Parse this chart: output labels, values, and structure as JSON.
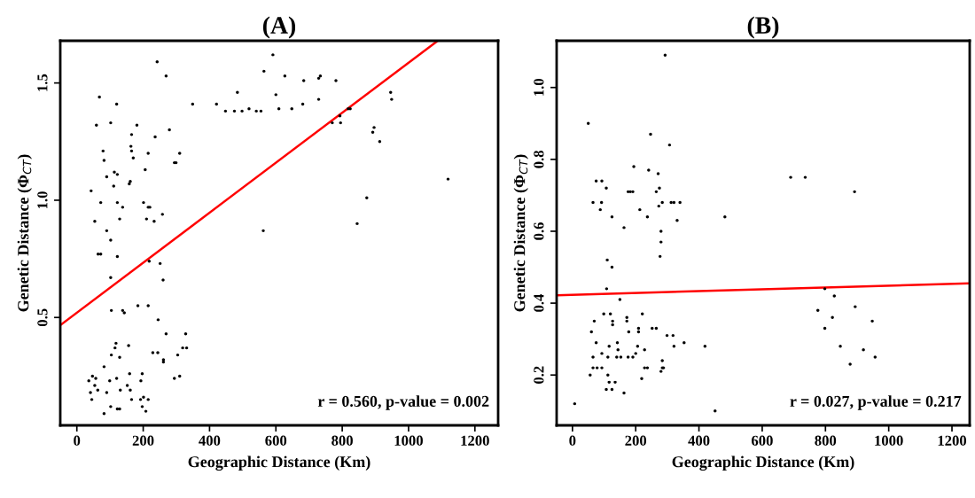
{
  "chart_data": [
    {
      "type": "scatter",
      "title": "(A)",
      "xlabel": "Geographic Distance (Km)",
      "ylabel": "Genetic Distance (Φ$_{CT}$)",
      "xlim": [
        -50,
        1270
      ],
      "xticks": [
        0,
        200,
        400,
        600,
        800,
        1000,
        1200
      ],
      "ylim": [
        0.04,
        1.68
      ],
      "yticks": [
        0.5,
        {
          "value": 1.0,
          "label": "1.0"
        },
        1.5
      ],
      "grid": false,
      "annotations": [
        "r = 0.560, p-value = 0.002"
      ],
      "series": [
        {
          "marker": "circle",
          "color": "#000000",
          "x": [
            242,
            269,
            591,
            564,
            627,
            684,
            729,
            734,
            781,
            484,
            600,
            946,
            949,
            421,
            681,
            729,
            448,
            475,
            498,
            519,
            541,
            609,
            648,
            555,
            818,
            793,
            770,
            795,
            824,
            892,
            896,
            913,
            874,
            845,
            562,
            1119,
            349,
            68,
            120,
            59,
            102,
            181,
            165,
            236,
            163,
            165,
            79,
            82,
            170,
            215,
            310,
            299,
            294,
            279,
            90,
            113,
            122,
            111,
            161,
            158,
            206,
            43,
            122,
            138,
            72,
            201,
            215,
            220,
            210,
            233,
            258,
            129,
            54,
            90,
            102,
            64,
            72,
            122,
            218,
            251,
            260,
            102,
            104,
            138,
            143,
            184,
            215,
            245,
            269,
            118,
            115,
            156,
            104,
            129,
            229,
            244,
            261,
            261,
            304,
            328,
            331,
            319,
            47,
            57,
            36,
            99,
            120,
            159,
            197,
            82,
            54,
            63,
            41,
            45,
            90,
            131,
            152,
            161,
            193,
            201,
            192,
            82,
            102,
            122,
            129,
            197,
            208,
            165,
            215,
            294,
            310
          ],
          "values": [
            1.59,
            1.53,
            1.62,
            1.55,
            1.53,
            1.51,
            1.52,
            1.53,
            1.51,
            1.46,
            1.45,
            1.46,
            1.43,
            1.41,
            1.41,
            1.43,
            1.38,
            1.38,
            1.38,
            1.39,
            1.38,
            1.39,
            1.39,
            1.38,
            1.39,
            1.36,
            1.33,
            1.33,
            1.39,
            1.29,
            1.31,
            1.25,
            1.01,
            0.9,
            0.87,
            1.09,
            1.41,
            1.44,
            1.41,
            1.32,
            1.33,
            1.32,
            1.28,
            1.27,
            1.23,
            1.21,
            1.21,
            1.17,
            1.18,
            1.2,
            1.2,
            1.16,
            1.16,
            1.3,
            1.1,
            1.12,
            1.11,
            1.06,
            1.08,
            1.07,
            1.13,
            1.04,
            0.99,
            0.97,
            0.99,
            0.99,
            0.97,
            0.97,
            0.92,
            0.91,
            0.94,
            0.92,
            0.91,
            0.87,
            0.83,
            0.77,
            0.77,
            0.76,
            0.74,
            0.73,
            0.66,
            0.67,
            0.53,
            0.53,
            0.52,
            0.55,
            0.55,
            0.49,
            0.43,
            0.39,
            0.37,
            0.38,
            0.34,
            0.33,
            0.35,
            0.35,
            0.32,
            0.31,
            0.34,
            0.43,
            0.37,
            0.37,
            0.25,
            0.24,
            0.23,
            0.23,
            0.24,
            0.26,
            0.26,
            0.29,
            0.21,
            0.19,
            0.18,
            0.15,
            0.18,
            0.19,
            0.21,
            0.19,
            0.23,
            0.16,
            0.15,
            0.09,
            0.12,
            0.11,
            0.11,
            0.12,
            0.1,
            0.15,
            0.15,
            0.24,
            0.25
          ]
        },
        {
          "type": "line",
          "color": "#ff0000",
          "x": [
            -50,
            1088
          ],
          "values": [
            0.467,
            1.68
          ]
        }
      ]
    },
    {
      "type": "scatter",
      "title": "(B)",
      "xlabel": "Geographic Distance (Km)",
      "ylabel": "Genetic Distance (Φ$_{CT}$)",
      "xlim": [
        -50,
        1256
      ],
      "xticks": [
        0,
        200,
        400,
        600,
        800,
        1000,
        1200
      ],
      "ylim": [
        0.06,
        1.13
      ],
      "yticks": [
        0.2,
        0.4,
        0.6,
        0.8,
        {
          "value": 1.0,
          "label": "1.0"
        }
      ],
      "grid": false,
      "annotations": [
        "r = 0.027, p-value = 0.217"
      ],
      "series": [
        {
          "marker": "circle",
          "color": "#000000",
          "x": [
            293,
            50,
            247,
            307,
            194,
            241,
            271,
            75,
            93,
            107,
            176,
            183,
            191,
            275,
            265,
            321,
            284,
            65,
            92,
            88,
            273,
            340,
            312,
            213,
            237,
            125,
            482,
            331,
            163,
            280,
            280,
            277,
            110,
            125,
            690,
            736,
            892,
            108,
            150,
            798,
            828,
            776,
            894,
            822,
            798,
            948,
            847,
            920,
            957,
            878,
            419,
            451,
            7,
            69,
            99,
            120,
            60,
            127,
            127,
            172,
            172,
            221,
            178,
            209,
            209,
            252,
            265,
            299,
            318,
            353,
            321,
            75,
            93,
            65,
            116,
            142,
            144,
            140,
            153,
            112,
            200,
            176,
            206,
            228,
            191,
            65,
            56,
            93,
            112,
            116,
            107,
            125,
            163,
            135,
            219,
            228,
            237,
            288,
            284,
            280,
            284,
            78
          ],
          "values": [
            1.09,
            0.9,
            0.87,
            0.84,
            0.78,
            0.77,
            0.76,
            0.74,
            0.74,
            0.72,
            0.71,
            0.71,
            0.71,
            0.72,
            0.71,
            0.68,
            0.68,
            0.68,
            0.68,
            0.66,
            0.67,
            0.68,
            0.68,
            0.66,
            0.64,
            0.64,
            0.64,
            0.63,
            0.61,
            0.6,
            0.57,
            0.53,
            0.52,
            0.5,
            0.75,
            0.75,
            0.71,
            0.44,
            0.41,
            0.44,
            0.42,
            0.38,
            0.39,
            0.36,
            0.33,
            0.35,
            0.28,
            0.27,
            0.25,
            0.23,
            0.28,
            0.1,
            0.12,
            0.35,
            0.37,
            0.37,
            0.32,
            0.35,
            0.34,
            0.36,
            0.35,
            0.37,
            0.32,
            0.33,
            0.32,
            0.33,
            0.33,
            0.31,
            0.31,
            0.29,
            0.28,
            0.29,
            0.26,
            0.25,
            0.28,
            0.29,
            0.27,
            0.25,
            0.25,
            0.25,
            0.26,
            0.25,
            0.28,
            0.27,
            0.25,
            0.22,
            0.2,
            0.22,
            0.2,
            0.18,
            0.16,
            0.16,
            0.15,
            0.18,
            0.19,
            0.22,
            0.22,
            0.22,
            0.22,
            0.21,
            0.24,
            0.22
          ]
        },
        {
          "type": "line",
          "color": "#ff0000",
          "x": [
            -49,
            1256
          ],
          "values": [
            0.422,
            0.455
          ]
        }
      ]
    }
  ]
}
